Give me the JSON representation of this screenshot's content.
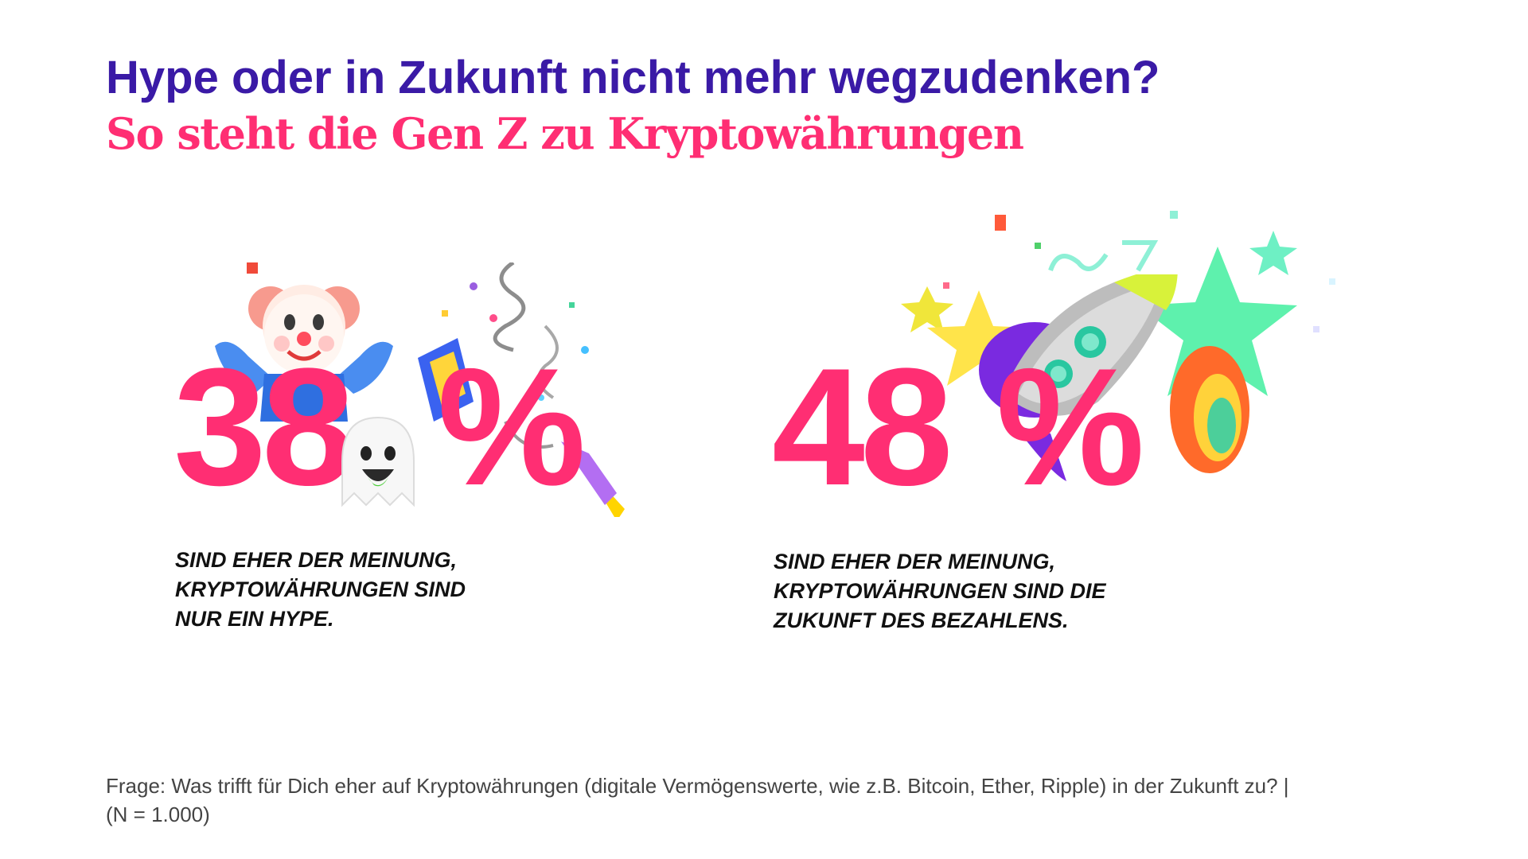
{
  "header": {
    "title": "Hype oder in Zukunft nicht mehr wegzudenken?",
    "subtitle": "So steht die Gen Z zu Kryptowährungen"
  },
  "stats": [
    {
      "value": "38",
      "unit": "%",
      "caption_lines": [
        "SIND EHER DER MEINUNG,",
        "KRYPTOWÄHRUNGEN SIND",
        "NUR EIN HYPE."
      ],
      "icons": [
        "clown-face-icon",
        "ghost-icon",
        "party-popper-icon"
      ]
    },
    {
      "value": "48",
      "unit": "%",
      "caption_lines": [
        "SIND EHER DER MEINUNG,",
        "KRYPTOWÄHRUNGEN SIND DIE",
        "ZUKUNFT DES BEZAHLENS."
      ],
      "icons": [
        "rocket-icon",
        "star-icon",
        "sparkle-star-icon"
      ]
    }
  ],
  "footnote": {
    "lines": [
      "Frage: Was trifft für Dich eher auf Kryptowährungen (digitale Vermögenswerte, wie z.B. Bitcoin, Ether, Ripple) in der Zukunft zu? |",
      "(N = 1.000)"
    ]
  },
  "colors": {
    "title": "#3a1aa6",
    "accent": "#ff2e73",
    "caption": "#111111",
    "footnote": "#444444"
  }
}
